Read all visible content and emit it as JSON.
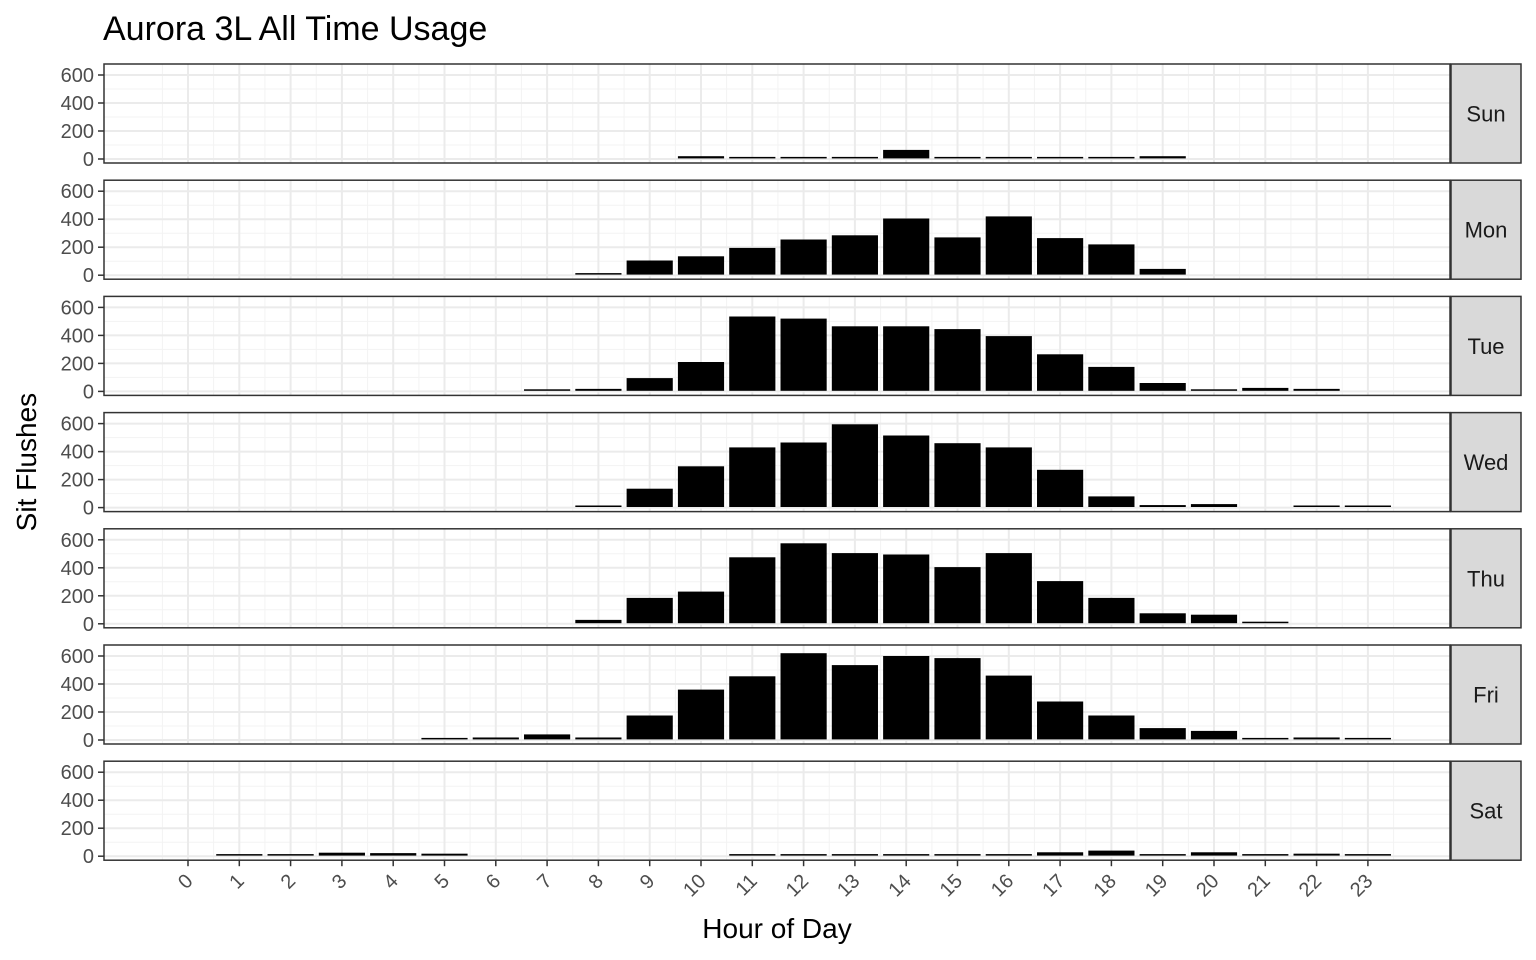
{
  "chart_data": {
    "type": "bar",
    "title": "Aurora 3L All Time Usage",
    "xlabel": "Hour of Day",
    "ylabel": "Sit Flushes",
    "categories": [
      "0",
      "1",
      "2",
      "3",
      "4",
      "5",
      "6",
      "7",
      "8",
      "9",
      "10",
      "11",
      "12",
      "13",
      "14",
      "15",
      "16",
      "17",
      "18",
      "19",
      "20",
      "21",
      "22",
      "23"
    ],
    "ylim": [
      0,
      650
    ],
    "yticks": [
      "0",
      "200",
      "400",
      "600"
    ],
    "grid": true,
    "facet_by": "day of week",
    "panels": [
      {
        "name": "Sun",
        "values": [
          0,
          0,
          0,
          0,
          0,
          0,
          0,
          0,
          0,
          0,
          20,
          8,
          8,
          8,
          65,
          8,
          8,
          15,
          15,
          20,
          0,
          0,
          0,
          0
        ]
      },
      {
        "name": "Mon",
        "values": [
          0,
          0,
          0,
          0,
          0,
          0,
          0,
          0,
          8,
          105,
          135,
          195,
          255,
          285,
          405,
          270,
          420,
          265,
          220,
          45,
          0,
          0,
          0,
          0
        ]
      },
      {
        "name": "Tue",
        "values": [
          0,
          0,
          0,
          0,
          0,
          0,
          0,
          5,
          18,
          95,
          210,
          535,
          520,
          465,
          465,
          445,
          395,
          265,
          175,
          60,
          5,
          25,
          18,
          0
        ]
      },
      {
        "name": "Wed",
        "values": [
          0,
          0,
          0,
          0,
          0,
          0,
          0,
          0,
          10,
          135,
          295,
          430,
          465,
          595,
          515,
          460,
          430,
          270,
          80,
          18,
          25,
          0,
          12,
          8
        ]
      },
      {
        "name": "Thu",
        "values": [
          0,
          0,
          0,
          0,
          0,
          0,
          0,
          0,
          28,
          185,
          230,
          475,
          575,
          505,
          495,
          405,
          505,
          305,
          185,
          75,
          65,
          12,
          0,
          0
        ]
      },
      {
        "name": "Fri",
        "values": [
          0,
          0,
          0,
          0,
          0,
          5,
          18,
          40,
          18,
          175,
          360,
          455,
          620,
          535,
          600,
          585,
          460,
          275,
          175,
          85,
          65,
          12,
          18,
          12
        ]
      },
      {
        "name": "Sat",
        "values": [
          0,
          10,
          15,
          25,
          22,
          18,
          0,
          0,
          0,
          0,
          0,
          15,
          8,
          12,
          8,
          8,
          15,
          28,
          40,
          12,
          28,
          8,
          18,
          15
        ]
      }
    ]
  }
}
